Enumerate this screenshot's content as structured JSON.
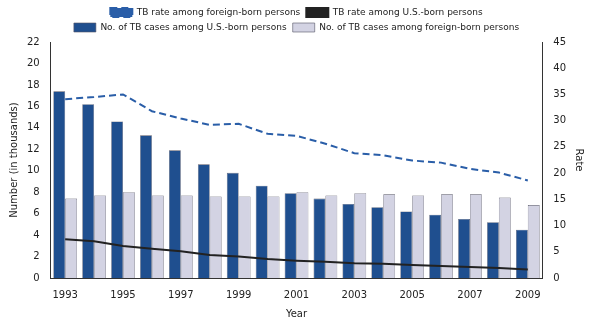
{
  "chart_data": {
    "type": "bar",
    "x_label": "Year",
    "y_label": "Number (in thousands)",
    "y2_label": "Rate",
    "categories": [
      "1993",
      null,
      "1995",
      null,
      "1997",
      null,
      "1999",
      null,
      "2001",
      null,
      "2003",
      null,
      "2005",
      null,
      "2007",
      null,
      "2009"
    ],
    "ylim": [
      0,
      22
    ],
    "yticks": [
      0,
      2,
      4,
      6,
      8,
      10,
      12,
      14,
      16,
      18,
      20,
      22
    ],
    "y2lim": [
      0,
      45
    ],
    "y2ticks": [
      0,
      5,
      10,
      15,
      20,
      25,
      30,
      35,
      40,
      45
    ],
    "grid": false,
    "legend": "top",
    "series": [
      {
        "name": "No. of TB cases among U.S.-born persons",
        "type": "bar",
        "color": "#1f4f8f",
        "values": [
          17.4,
          16.2,
          14.6,
          13.3,
          11.9,
          10.6,
          9.8,
          8.6,
          7.9,
          7.4,
          6.9,
          6.6,
          6.2,
          5.9,
          5.5,
          5.2,
          4.5
        ]
      },
      {
        "name": "No. of TB cases among foreign-born persons",
        "type": "bar",
        "color": "#d3d3e3",
        "values": [
          7.4,
          7.7,
          8.0,
          7.7,
          7.7,
          7.6,
          7.6,
          7.6,
          8.0,
          7.7,
          7.9,
          7.8,
          7.7,
          7.8,
          7.8,
          7.5,
          6.8
        ]
      },
      {
        "name": "TB rate among foreign-born persons",
        "type": "line",
        "axis": "y2",
        "color": "#2a5ea8",
        "line_style": "dashed",
        "marker": "none",
        "values": [
          34.1,
          34.5,
          35.0,
          31.8,
          30.4,
          29.2,
          29.4,
          27.5,
          27.1,
          25.6,
          23.8,
          23.4,
          22.4,
          22.0,
          20.8,
          20.1,
          18.6
        ]
      },
      {
        "name": "TB rate among U.S.-born persons",
        "type": "line",
        "axis": "y2",
        "color": "#222222",
        "line_style": "solid",
        "marker": "none",
        "values": [
          7.4,
          7.0,
          6.1,
          5.6,
          5.1,
          4.4,
          4.1,
          3.6,
          3.3,
          3.1,
          2.8,
          2.7,
          2.5,
          2.3,
          2.1,
          1.9,
          1.6
        ]
      }
    ]
  }
}
